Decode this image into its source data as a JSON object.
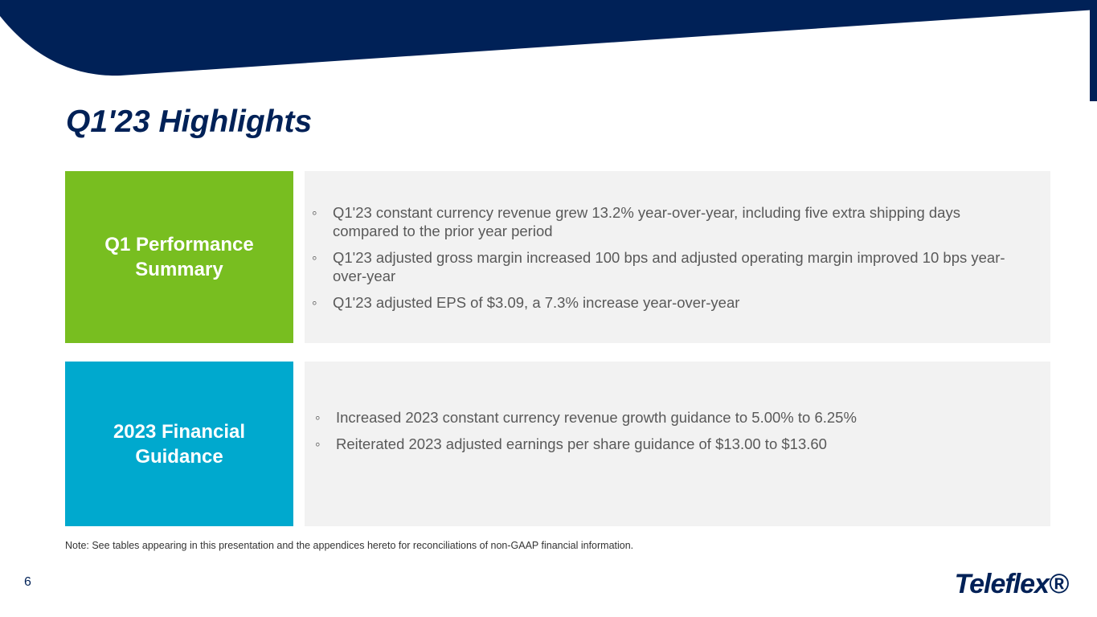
{
  "header": {
    "title": "Q1'23 Highlights"
  },
  "sections": [
    {
      "label": "Q1 Performance Summary",
      "bullets": [
        "Q1'23 constant currency revenue grew 13.2% year-over-year, including five extra shipping days compared to the prior year period",
        "Q1'23 adjusted gross margin increased 100 bps and adjusted operating margin improved 10 bps year-over-year",
        "Q1'23 adjusted EPS of $3.09, a 7.3% increase year-over-year"
      ]
    },
    {
      "label": "2023 Financial Guidance",
      "bullets": [
        "Increased 2023 constant currency revenue growth guidance to 5.00% to 6.25%",
        "Reiterated 2023 adjusted earnings per share guidance of $13.00 to $13.60"
      ]
    }
  ],
  "footer": {
    "note": "Note: See tables appearing in this presentation and the appendices hereto for reconciliations of non-GAAP financial information.",
    "page_number": "6",
    "logo": "Teleflex®"
  }
}
